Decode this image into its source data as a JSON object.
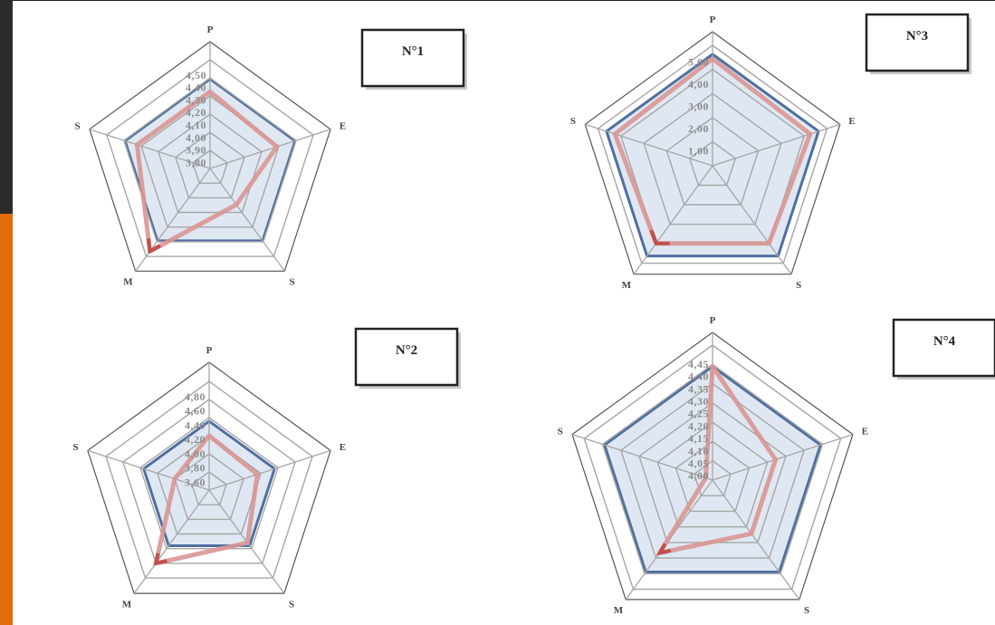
{
  "colors": {
    "series_a_fill": "#dbe5f1",
    "series_a_line": "#4f6fa0",
    "series_b_line": "#d99694",
    "series_b_accent": "#c0504d",
    "grid": "#a6a6a6",
    "slide_dark": "#2b2b2b",
    "slide_accent": "#e36c0a"
  },
  "chart_data": [
    {
      "type": "radar",
      "title": "N°1",
      "axes": [
        "P",
        "E",
        "S",
        "M",
        "S"
      ],
      "tick_labels": [
        "4,50",
        "4,40",
        "4,30",
        "4,20",
        "4,10",
        "4,00",
        "3,90",
        "3,80"
      ],
      "range": [
        3.7,
        4.55
      ],
      "grid_rings": 6,
      "series": [
        {
          "values": [
            4.4,
            4.4,
            4.4,
            4.4,
            4.4
          ]
        },
        {
          "values": [
            4.3,
            4.25,
            4.05,
            4.5,
            4.3
          ]
        }
      ]
    },
    {
      "type": "radar",
      "title": "N°3",
      "axes": [
        "P",
        "E",
        "S",
        "M",
        "S"
      ],
      "tick_labels": [
        "5,00",
        "4,00",
        "3,00",
        "2,00",
        "1,00"
      ],
      "range": [
        0,
        5.4
      ],
      "grid_rings": 5,
      "series": [
        {
          "values": [
            5.0,
            5.0,
            5.0,
            5.0,
            5.0
          ]
        },
        {
          "values": [
            4.8,
            4.6,
            4.3,
            4.3,
            4.6
          ]
        }
      ]
    },
    {
      "type": "radar",
      "title": "N°2",
      "axes": [
        "P",
        "E",
        "S",
        "M",
        "S"
      ],
      "tick_labels": [
        "4,80",
        "4,60",
        "4,40",
        "4,20",
        "4,00",
        "3,80",
        "3,60"
      ],
      "range": [
        3.45,
        4.95
      ],
      "grid_rings": 6,
      "series": [
        {
          "values": [
            4.4,
            4.4,
            4.4,
            4.4,
            4.4
          ]
        },
        {
          "values": [
            4.2,
            4.15,
            4.35,
            4.7,
            3.95
          ]
        }
      ]
    },
    {
      "type": "radar",
      "title": "N°4",
      "axes": [
        "P",
        "E",
        "S",
        "M",
        "S"
      ],
      "tick_labels": [
        "4,45",
        "4,40",
        "4,35",
        "4,30",
        "4,25",
        "4,20",
        "4,15",
        "4,10",
        "4,05",
        "4,00"
      ],
      "range": [
        3.92,
        4.49
      ],
      "grid_rings": 7,
      "series": [
        {
          "values": [
            4.4,
            4.4,
            4.4,
            4.4,
            4.4
          ]
        },
        {
          "values": [
            4.4,
            4.2,
            4.2,
            4.3,
            3.95
          ]
        }
      ]
    }
  ]
}
